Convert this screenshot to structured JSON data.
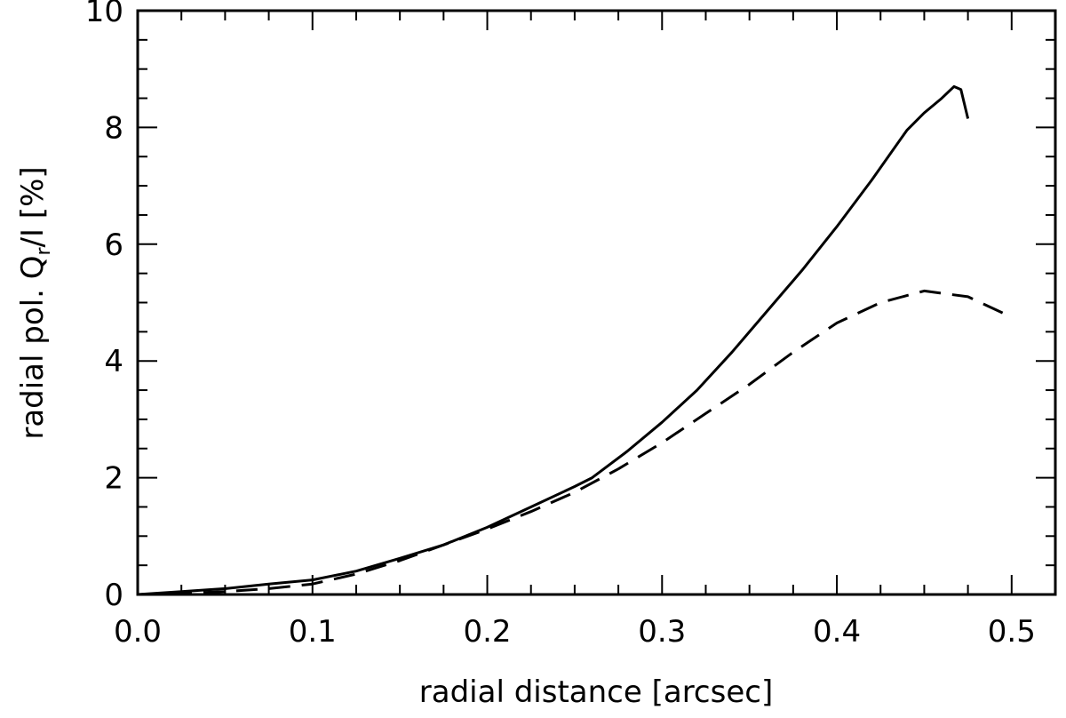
{
  "chart_data": {
    "type": "line",
    "xlabel": "radial distance [arcsec]",
    "ylabel": {
      "prefix": "radial pol. Q",
      "subscript": "r",
      "suffix": "/I [%]"
    },
    "xlim": [
      0.0,
      0.525
    ],
    "ylim": [
      0,
      10
    ],
    "x_ticks": [
      "0.0",
      "0.1",
      "0.2",
      "0.3",
      "0.4",
      "0.5"
    ],
    "y_ticks": [
      "0",
      "2",
      "4",
      "6",
      "8",
      "10"
    ],
    "grid": false,
    "legend": "none",
    "series": [
      {
        "style": "solid",
        "x": [
          0.0,
          0.025,
          0.05,
          0.075,
          0.1,
          0.125,
          0.15,
          0.175,
          0.2,
          0.225,
          0.25,
          0.26,
          0.28,
          0.3,
          0.32,
          0.34,
          0.36,
          0.38,
          0.4,
          0.42,
          0.44,
          0.45,
          0.46,
          0.467,
          0.471,
          0.475
        ],
        "y": [
          0.0,
          0.05,
          0.1,
          0.18,
          0.25,
          0.4,
          0.62,
          0.85,
          1.15,
          1.5,
          1.85,
          2.0,
          2.45,
          2.95,
          3.5,
          4.15,
          4.85,
          5.55,
          6.3,
          7.1,
          7.95,
          8.25,
          8.5,
          8.7,
          8.65,
          8.15
        ]
      },
      {
        "style": "dashed",
        "x": [
          0.0,
          0.025,
          0.05,
          0.075,
          0.1,
          0.125,
          0.15,
          0.175,
          0.2,
          0.225,
          0.25,
          0.275,
          0.3,
          0.325,
          0.35,
          0.375,
          0.4,
          0.425,
          0.45,
          0.475,
          0.5
        ],
        "y": [
          0.0,
          0.02,
          0.05,
          0.1,
          0.18,
          0.35,
          0.58,
          0.85,
          1.12,
          1.42,
          1.75,
          2.15,
          2.6,
          3.1,
          3.6,
          4.15,
          4.65,
          5.0,
          5.2,
          5.1,
          4.75
        ]
      }
    ]
  }
}
